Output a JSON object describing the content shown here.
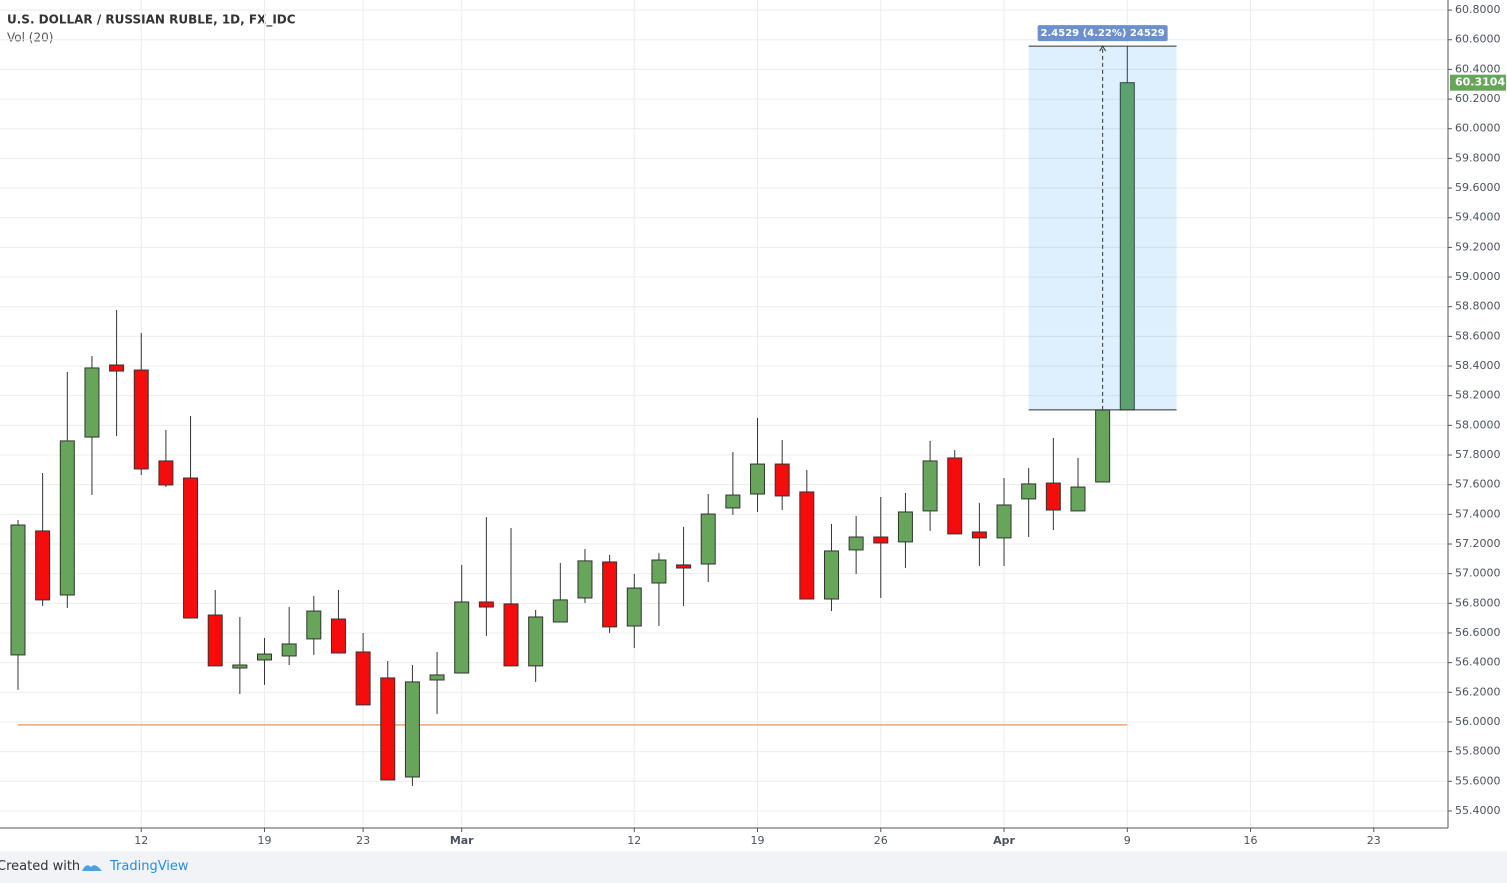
{
  "chart_data": {
    "type": "candlestick",
    "title": "U.S. DOLLAR / RUSSIAN RUBLE, 1D, FX_IDC",
    "subtitle": "Vol (20)",
    "x": [
      0,
      1,
      2,
      3,
      4,
      5,
      6,
      7,
      8,
      9,
      10,
      11,
      12,
      13,
      14,
      15,
      16,
      17,
      18,
      19,
      20,
      21,
      22,
      23,
      24,
      25,
      26,
      27,
      28,
      29,
      30,
      31,
      32,
      33,
      34,
      35,
      36,
      37,
      38,
      39,
      40,
      41,
      42,
      43,
      44,
      45
    ],
    "open": [
      56.452,
      57.288,
      56.856,
      57.921,
      58.407,
      58.373,
      57.76,
      57.645,
      56.721,
      56.364,
      56.418,
      56.445,
      56.56,
      56.694,
      56.472,
      56.297,
      55.629,
      56.283,
      56.33,
      56.809,
      56.796,
      56.378,
      56.674,
      56.836,
      57.079,
      56.647,
      56.937,
      57.059,
      57.065,
      57.443,
      57.537,
      57.739,
      57.551,
      56.829,
      57.16,
      57.247,
      57.214,
      57.423,
      57.78,
      57.281,
      57.241,
      57.504,
      57.611,
      57.423,
      57.618,
      58.104
    ],
    "high": [
      57.362,
      57.679,
      58.36,
      58.468,
      58.778,
      58.623,
      57.969,
      58.063,
      56.89,
      56.708,
      56.566,
      56.775,
      56.85,
      56.89,
      56.6,
      56.411,
      56.384,
      56.472,
      57.059,
      57.382,
      57.308,
      56.755,
      57.072,
      57.166,
      57.126,
      56.998,
      57.139,
      57.315,
      57.537,
      57.82,
      58.05,
      57.901,
      57.699,
      57.335,
      57.389,
      57.517,
      57.544,
      57.895,
      57.834,
      57.477,
      57.645,
      57.713,
      57.915,
      57.78,
      58.104,
      60.557
    ],
    "low": [
      56.216,
      56.782,
      56.769,
      57.53,
      57.928,
      57.665,
      57.584,
      56.701,
      56.378,
      56.189,
      56.25,
      56.384,
      56.452,
      56.465,
      56.115,
      55.609,
      55.569,
      56.054,
      56.33,
      56.58,
      56.378,
      56.27,
      56.674,
      56.802,
      56.6,
      56.499,
      56.647,
      56.782,
      56.944,
      57.396,
      57.416,
      57.429,
      56.829,
      56.748,
      56.998,
      56.836,
      57.038,
      57.288,
      57.268,
      57.052,
      57.052,
      57.247,
      57.294,
      57.423,
      57.618,
      58.104
    ],
    "close": [
      57.328,
      56.823,
      57.895,
      58.387,
      58.366,
      57.706,
      57.598,
      56.701,
      56.378,
      56.384,
      56.458,
      56.526,
      56.748,
      56.465,
      56.115,
      55.609,
      56.27,
      56.317,
      56.809,
      56.775,
      56.378,
      56.708,
      56.823,
      57.086,
      56.641,
      56.903,
      57.092,
      57.038,
      57.402,
      57.53,
      57.739,
      57.524,
      56.829,
      57.153,
      57.247,
      57.207,
      57.416,
      57.76,
      57.268,
      57.241,
      57.463,
      57.605,
      57.429,
      57.584,
      58.104,
      60.3104
    ],
    "up_color": "#67a55b",
    "down_color": "#f50d0d",
    "xlim": [
      -0.73,
      58.01
    ],
    "xticks": [
      {
        "value": 5,
        "label": "12"
      },
      {
        "value": 10,
        "label": "19"
      },
      {
        "value": 14,
        "label": "23"
      },
      {
        "value": 18,
        "label": "Mar"
      },
      {
        "value": 25,
        "label": "12"
      },
      {
        "value": 30,
        "label": "19"
      },
      {
        "value": 35,
        "label": "26"
      },
      {
        "value": 40,
        "label": "Apr"
      },
      {
        "value": 45,
        "label": "9"
      },
      {
        "value": 50,
        "label": "16"
      },
      {
        "value": 55,
        "label": "23"
      }
    ],
    "ylim": [
      55.285,
      60.868
    ],
    "yticks": [
      {
        "value": 55.4,
        "label": "55.4000"
      },
      {
        "value": 55.6,
        "label": "55.6000"
      },
      {
        "value": 55.8,
        "label": "55.8000"
      },
      {
        "value": 56.0,
        "label": "56.0000"
      },
      {
        "value": 56.2,
        "label": "56.2000"
      },
      {
        "value": 56.4,
        "label": "56.4000"
      },
      {
        "value": 56.6,
        "label": "56.6000"
      },
      {
        "value": 56.8,
        "label": "56.8000"
      },
      {
        "value": 57.0,
        "label": "57.0000"
      },
      {
        "value": 57.2,
        "label": "57.2000"
      },
      {
        "value": 57.4,
        "label": "57.4000"
      },
      {
        "value": 57.6,
        "label": "57.6000"
      },
      {
        "value": 57.8,
        "label": "57.8000"
      },
      {
        "value": 58.0,
        "label": "58.0000"
      },
      {
        "value": 58.2,
        "label": "58.2000"
      },
      {
        "value": 58.4,
        "label": "58.4000"
      },
      {
        "value": 58.6,
        "label": "58.6000"
      },
      {
        "value": 58.8,
        "label": "58.8000"
      },
      {
        "value": 59.0,
        "label": "59.0000"
      },
      {
        "value": 59.2,
        "label": "59.2000"
      },
      {
        "value": 59.4,
        "label": "59.4000"
      },
      {
        "value": 59.6,
        "label": "59.6000"
      },
      {
        "value": 59.8,
        "label": "59.8000"
      },
      {
        "value": 60.0,
        "label": "60.0000"
      },
      {
        "value": 60.2,
        "label": "60.2000"
      },
      {
        "value": 60.4,
        "label": "60.4000"
      },
      {
        "value": 60.6,
        "label": "60.6000"
      },
      {
        "value": 60.8,
        "label": "60.8000"
      }
    ],
    "grid": true,
    "hline": {
      "value": 55.98,
      "x_range": [
        0,
        45
      ],
      "color": "#f0a070"
    },
    "measure": {
      "label": "2.4529 (4.22%) 24529",
      "low": 58.104,
      "high": 60.557,
      "x_range": [
        41,
        47
      ],
      "color": "#2196f3"
    }
  },
  "footer": {
    "created_with": "Created with",
    "brand": "TradingView"
  }
}
